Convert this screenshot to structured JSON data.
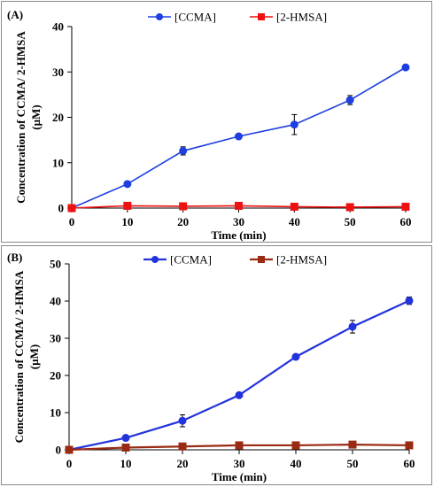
{
  "chart_data": [
    {
      "type": "line",
      "panel_label": "(A)",
      "xlabel": "Time (min)",
      "ylabel_line1": "Concentration of CCMA/ 2-HMSA",
      "ylabel_line2": "(µM)",
      "x": [
        0,
        10,
        20,
        30,
        40,
        50,
        60
      ],
      "xlim": [
        0,
        60
      ],
      "ylim": [
        0,
        40
      ],
      "x_ticks": [
        0,
        10,
        20,
        30,
        40,
        50,
        60
      ],
      "y_ticks": [
        0,
        10,
        20,
        30,
        40
      ],
      "grid": false,
      "legend_position": "top-center",
      "series": [
        {
          "name": "[CCMA]",
          "color": "#1f3fe0",
          "marker": "circle",
          "values": [
            0,
            5.3,
            12.6,
            15.8,
            18.4,
            23.8,
            31.0
          ],
          "errors": [
            0,
            0.5,
            0.9,
            0.3,
            2.2,
            1.0,
            0.4
          ]
        },
        {
          "name": "[2-HMSA]",
          "color": "#ee1111",
          "marker": "square",
          "values": [
            0,
            0.5,
            0.4,
            0.5,
            0.3,
            0.2,
            0.3
          ],
          "errors": [
            0,
            0,
            0,
            0,
            0,
            0,
            0
          ]
        }
      ]
    },
    {
      "type": "line",
      "panel_label": "(B)",
      "xlabel": "Time (min)",
      "ylabel_line1": "Concentration of CCMA/ 2-HMSA",
      "ylabel_line2": "(µM)",
      "x": [
        0,
        10,
        20,
        30,
        40,
        50,
        60
      ],
      "xlim": [
        0,
        60
      ],
      "ylim": [
        0,
        50
      ],
      "x_ticks": [
        0,
        10,
        20,
        30,
        40,
        50,
        60
      ],
      "y_ticks": [
        0,
        10,
        20,
        30,
        40,
        50
      ],
      "grid": false,
      "legend_position": "top-center",
      "series": [
        {
          "name": "[CCMA]",
          "color": "#2233dd",
          "marker": "circle",
          "values": [
            0,
            3.2,
            7.8,
            14.7,
            25.0,
            33.1,
            40.1
          ],
          "errors": [
            0,
            0.3,
            1.6,
            0.5,
            0.4,
            1.7,
            1.0
          ]
        },
        {
          "name": "[2-HMSA]",
          "color": "#9a2a12",
          "marker": "square",
          "values": [
            0,
            0.6,
            0.9,
            1.2,
            1.2,
            1.4,
            1.2
          ],
          "errors": [
            0,
            0.3,
            0.3,
            0.4,
            0.3,
            0.4,
            0.4
          ],
          "error_color": "#e060c0"
        }
      ]
    }
  ]
}
